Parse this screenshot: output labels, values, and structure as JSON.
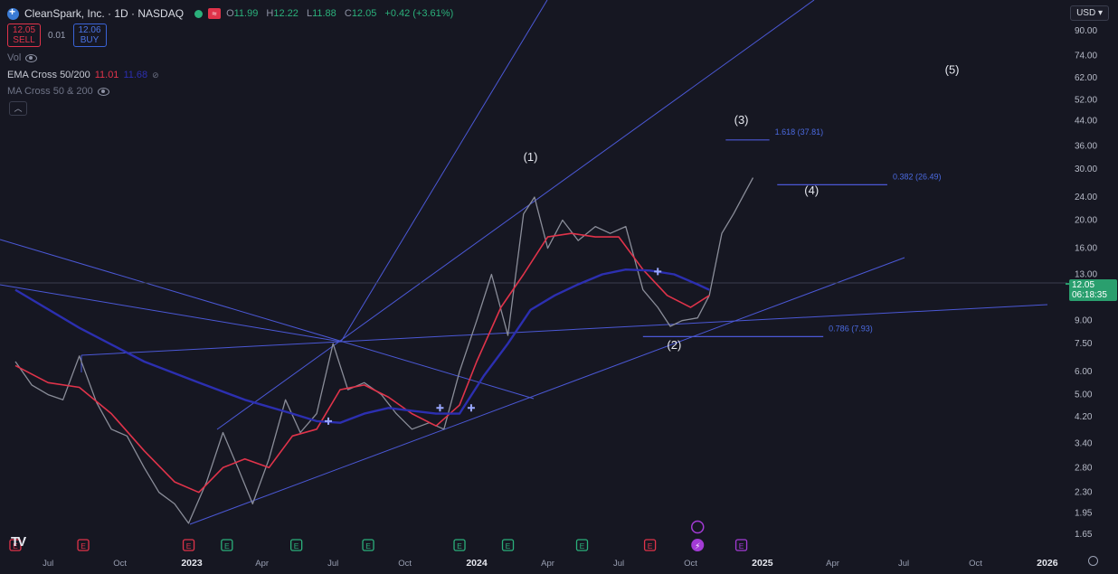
{
  "header": {
    "symbol": "CleanSpark, Inc. · 1D · NASDAQ",
    "o_label": "O",
    "o": "11.99",
    "h_label": "H",
    "h": "12.22",
    "l_label": "L",
    "l": "11.88",
    "c_label": "C",
    "c": "12.05",
    "change": "+0.42 (+3.61%)",
    "sell_price": "12.05",
    "sell_label": "SELL",
    "spread": "0.01",
    "buy_price": "12.06",
    "buy_label": "BUY",
    "flag_icon": "≈"
  },
  "indicators": {
    "vol_label": "Vol",
    "ema_label": "EMA Cross 50/200",
    "ema_fast_value": "11.01",
    "ema_slow_value": "11.68",
    "ema_fast_color": "#e0334a",
    "ema_slow_color": "#2c2fb0",
    "ma_label": "MA Cross 50 & 200",
    "collapse_icon": "chevron-up-icon"
  },
  "currency": "USD",
  "price_tag": {
    "price": "12.05",
    "countdown": "06:18:35",
    "color": "#2a9f6e"
  },
  "tv_logo": "TV",
  "chart_data": {
    "type": "line",
    "title": "",
    "ylabel": "",
    "xlabel": "",
    "scale": "log",
    "ylim": [
      1.5,
      100
    ],
    "grid": false,
    "y_ticks": [
      "90.00",
      "74.00",
      "62.00",
      "52.00",
      "44.00",
      "36.00",
      "30.00",
      "24.00",
      "20.00",
      "16.00",
      "13.00",
      "9.00",
      "7.50",
      "6.00",
      "5.00",
      "4.20",
      "3.40",
      "2.80",
      "2.30",
      "1.95",
      "1.65"
    ],
    "x_ticks": [
      "Jul",
      "Oct",
      "2023",
      "Apr",
      "Jul",
      "Oct",
      "2024",
      "Apr",
      "Jul",
      "Oct",
      "2025",
      "Apr",
      "Jul",
      "Oct",
      "2026"
    ],
    "x_tick_dates": [
      "2022-07-01",
      "2022-10-01",
      "2023-01-01",
      "2023-04-01",
      "2023-07-01",
      "2023-10-01",
      "2024-01-01",
      "2024-04-01",
      "2024-07-01",
      "2024-10-01",
      "2025-01-01",
      "2025-04-01",
      "2025-07-01",
      "2025-10-01",
      "2026-01-01"
    ],
    "series": [
      {
        "name": "price",
        "color": "#8a8d99",
        "x": [
          "2022-05-20",
          "2022-06-10",
          "2022-07-01",
          "2022-07-20",
          "2022-08-10",
          "2022-09-01",
          "2022-09-20",
          "2022-10-10",
          "2022-11-01",
          "2022-11-20",
          "2022-12-10",
          "2022-12-28",
          "2023-01-20",
          "2023-02-10",
          "2023-03-01",
          "2023-03-20",
          "2023-04-10",
          "2023-05-01",
          "2023-05-20",
          "2023-06-10",
          "2023-07-01",
          "2023-07-20",
          "2023-08-10",
          "2023-09-01",
          "2023-09-20",
          "2023-10-10",
          "2023-11-01",
          "2023-11-20",
          "2023-12-10",
          "2024-01-01",
          "2024-01-20",
          "2024-02-10",
          "2024-03-01",
          "2024-03-15",
          "2024-04-01",
          "2024-04-20",
          "2024-05-10",
          "2024-06-01",
          "2024-06-20",
          "2024-07-10",
          "2024-08-01",
          "2024-08-20",
          "2024-09-05",
          "2024-09-20",
          "2024-10-10",
          "2024-10-25",
          "2024-11-10",
          "2024-11-25",
          "2024-12-10",
          "2024-12-20"
        ],
        "values": [
          6.5,
          5.4,
          5.0,
          4.8,
          6.8,
          4.7,
          3.8,
          3.6,
          2.8,
          2.3,
          2.1,
          1.8,
          2.5,
          3.7,
          2.8,
          2.1,
          3.0,
          4.8,
          3.7,
          4.3,
          7.5,
          5.2,
          5.5,
          5.0,
          4.3,
          3.8,
          4.0,
          3.8,
          6.0,
          9.0,
          13.0,
          8.0,
          21.0,
          24.0,
          16.0,
          20.0,
          17.0,
          19.0,
          18.0,
          19.0,
          11.5,
          10.0,
          8.6,
          9.0,
          9.2,
          11.0,
          18.0,
          21.0,
          25.0,
          28.0
        ]
      },
      {
        "name": "EMA 50",
        "color": "#e0334a",
        "x": [
          "2022-05-20",
          "2022-07-01",
          "2022-08-10",
          "2022-09-20",
          "2022-11-01",
          "2022-12-10",
          "2023-01-10",
          "2023-02-10",
          "2023-03-10",
          "2023-04-10",
          "2023-05-10",
          "2023-06-10",
          "2023-07-10",
          "2023-08-10",
          "2023-09-10",
          "2023-10-10",
          "2023-11-10",
          "2023-12-10",
          "2024-01-01",
          "2024-02-01",
          "2024-03-01",
          "2024-04-01",
          "2024-05-01",
          "2024-06-01",
          "2024-07-01",
          "2024-08-01",
          "2024-09-01",
          "2024-10-01",
          "2024-10-25"
        ],
        "values": [
          6.3,
          5.5,
          5.3,
          4.3,
          3.2,
          2.5,
          2.3,
          2.8,
          3.0,
          2.8,
          3.6,
          3.8,
          5.2,
          5.4,
          4.9,
          4.3,
          3.9,
          4.6,
          6.5,
          10.0,
          13.0,
          17.5,
          18.0,
          17.5,
          17.5,
          13.5,
          11.0,
          10.0,
          11.0
        ]
      },
      {
        "name": "EMA 200",
        "color": "#2c2fb0",
        "x": [
          "2022-05-20",
          "2022-08-10",
          "2022-11-01",
          "2023-01-10",
          "2023-03-10",
          "2023-05-10",
          "2023-06-10",
          "2023-07-10",
          "2023-08-10",
          "2023-09-10",
          "2023-10-10",
          "2023-11-10",
          "2023-12-10",
          "2024-01-10",
          "2024-02-10",
          "2024-03-10",
          "2024-04-10",
          "2024-05-10",
          "2024-06-10",
          "2024-07-10",
          "2024-08-10",
          "2024-09-10",
          "2024-10-10",
          "2024-10-25"
        ],
        "values": [
          11.5,
          8.5,
          6.5,
          5.5,
          4.8,
          4.3,
          4.05,
          4.0,
          4.3,
          4.5,
          4.4,
          4.3,
          4.3,
          5.8,
          7.5,
          9.8,
          11.0,
          12.0,
          13.0,
          13.5,
          13.4,
          13.0,
          12.0,
          11.5
        ]
      }
    ],
    "crosses": [
      {
        "x": "2023-06-25",
        "y": 4.05
      },
      {
        "x": "2023-11-15",
        "y": 4.5
      },
      {
        "x": "2023-12-25",
        "y": 4.5
      },
      {
        "x": "2024-08-20",
        "y": 13.3
      }
    ],
    "annotations": [
      {
        "text": "(1)",
        "x": "2024-03-10",
        "y": 32.0
      },
      {
        "text": "(2)",
        "x": "2024-09-10",
        "y": 7.2
      },
      {
        "text": "(3)",
        "x": "2024-12-05",
        "y": 43.0
      },
      {
        "text": "(4)",
        "x": "2025-03-05",
        "y": 24.5
      },
      {
        "text": "(5)",
        "x": "2025-09-01",
        "y": 64.0
      }
    ],
    "levels": [
      {
        "label": "1.618 (37.81)",
        "y": 37.81,
        "x0": "2024-11-15",
        "x1": "2025-01-10"
      },
      {
        "label": "0.382 (26.49)",
        "y": 26.49,
        "x0": "2025-01-20",
        "x1": "2025-06-10"
      },
      {
        "label": "0.786 (7.93)",
        "y": 7.93,
        "x0": "2024-08-01",
        "x1": "2025-03-20"
      }
    ],
    "current_price": 12.05,
    "event_markers": [
      {
        "x": "2022-05-20",
        "kind": "E",
        "color": "#e0334a"
      },
      {
        "x": "2022-08-15",
        "kind": "E",
        "color": "#e0334a"
      },
      {
        "x": "2022-12-28",
        "kind": "E",
        "color": "#e0334a"
      },
      {
        "x": "2023-02-15",
        "kind": "E",
        "color": "#2bb07b"
      },
      {
        "x": "2023-05-15",
        "kind": "E",
        "color": "#2bb07b"
      },
      {
        "x": "2023-08-15",
        "kind": "E",
        "color": "#2bb07b"
      },
      {
        "x": "2023-12-10",
        "kind": "E",
        "color": "#2bb07b"
      },
      {
        "x": "2024-02-10",
        "kind": "E",
        "color": "#2bb07b"
      },
      {
        "x": "2024-05-15",
        "kind": "E",
        "color": "#2bb07b"
      },
      {
        "x": "2024-08-10",
        "kind": "E",
        "color": "#e0334a"
      },
      {
        "x": "2024-10-10",
        "kind": "⚡",
        "color": "#a33bd5"
      },
      {
        "x": "2024-12-05",
        "kind": "E",
        "color": "#a33bd5"
      }
    ]
  }
}
